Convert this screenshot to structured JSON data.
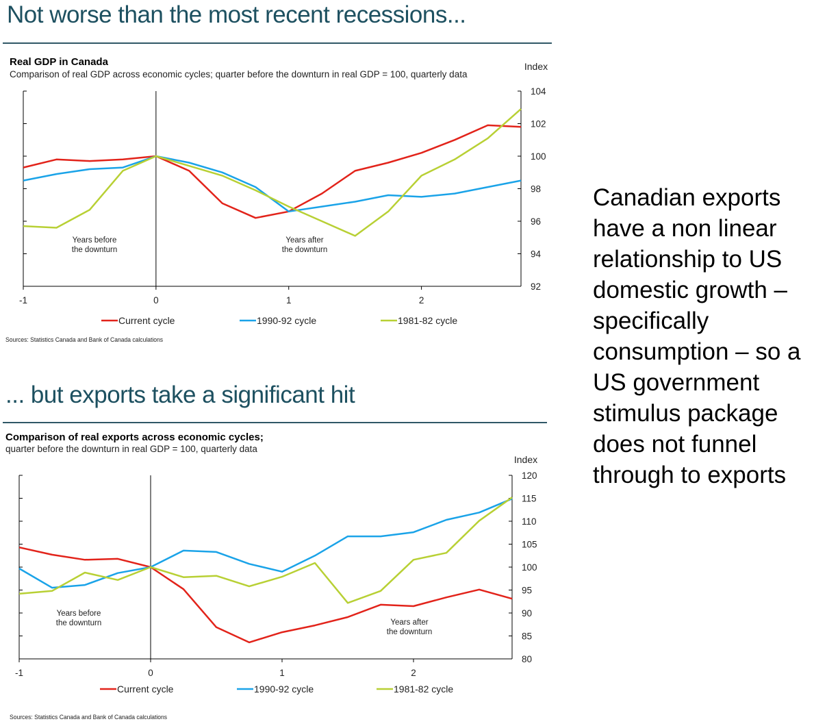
{
  "slide": {
    "headline_top": "Not worse than the most recent recessions...",
    "headline_bottom": "... but exports take a significant hit",
    "side_text": "Canadian exports have a non linear relationship to US domestic growth – specifically consumption – so a US government stimulus package does not funnel through to exports"
  },
  "colors": {
    "headline": "#1d5060",
    "current": "#e2231a",
    "cycle1990": "#1aa3e8",
    "cycle1981": "#b8d034"
  },
  "chart_data": [
    {
      "type": "line",
      "title": "Real GDP in Canada",
      "subtitle": "Comparison of real GDP across economic cycles; quarter before the downturn in real GDP = 100, quarterly data",
      "ylabel": "Index",
      "xlim": [
        -1,
        2.75
      ],
      "ylim": [
        92,
        104
      ],
      "xticks": [
        "-1",
        "0",
        "1",
        "2"
      ],
      "yticks": [
        "92",
        "94",
        "96",
        "98",
        "100",
        "102",
        "104"
      ],
      "annotations": [
        "Years before the downturn",
        "Years after the downturn"
      ],
      "legend": "bottom",
      "sources": "Sources: Statistics Canada and Bank of Canada calculations",
      "x": [
        -1,
        -0.75,
        -0.5,
        -0.25,
        0,
        0.25,
        0.5,
        0.75,
        1,
        1.25,
        1.5,
        1.75,
        2,
        2.25,
        2.5,
        2.75
      ],
      "series": [
        {
          "name": "Current cycle",
          "color": "#e2231a",
          "values": [
            99.3,
            99.8,
            99.7,
            99.8,
            100,
            99.1,
            97.1,
            96.2,
            96.6,
            97.7,
            99.1,
            99.6,
            100.2,
            101.0,
            101.9,
            101.8
          ]
        },
        {
          "name": "1990-92 cycle",
          "color": "#1aa3e8",
          "values": [
            98.5,
            98.9,
            99.2,
            99.3,
            100,
            99.6,
            99.0,
            98.1,
            96.6,
            96.9,
            97.2,
            97.6,
            97.5,
            97.7,
            98.1,
            98.5
          ]
        },
        {
          "name": "1981-82 cycle",
          "color": "#b8d034",
          "values": [
            95.7,
            95.6,
            96.7,
            99.1,
            100,
            99.4,
            98.8,
            97.9,
            96.9,
            96.0,
            95.1,
            96.6,
            98.8,
            99.8,
            101.1,
            102.9
          ]
        }
      ]
    },
    {
      "type": "line",
      "title": "Comparison of real exports across economic cycles;",
      "subtitle": "quarter before the downturn in real GDP = 100, quarterly data",
      "ylabel": "Index",
      "xlim": [
        -1,
        2.75
      ],
      "ylim": [
        80,
        120
      ],
      "xticks": [
        "-1",
        "0",
        "1",
        "2"
      ],
      "yticks": [
        "80",
        "85",
        "90",
        "95",
        "100",
        "105",
        "110",
        "115",
        "120"
      ],
      "annotations": [
        "Years before the downturn",
        "Years after the downturn"
      ],
      "legend": "bottom",
      "sources": "Sources: Statistics Canada and Bank of Canada calculations",
      "x": [
        -1,
        -0.75,
        -0.5,
        -0.25,
        0,
        0.25,
        0.5,
        0.75,
        1,
        1.25,
        1.5,
        1.75,
        2,
        2.25,
        2.5,
        2.75
      ],
      "series": [
        {
          "name": "Current cycle",
          "color": "#e2231a",
          "values": [
            104.3,
            102.7,
            101.6,
            101.8,
            100,
            95.2,
            86.9,
            83.6,
            85.8,
            87.3,
            89.1,
            91.8,
            91.5,
            93.4,
            95.1,
            93.1
          ]
        },
        {
          "name": "1990-92 cycle",
          "color": "#1aa3e8",
          "values": [
            99.7,
            95.5,
            96.1,
            98.7,
            100,
            103.6,
            103.3,
            100.7,
            99.0,
            102.5,
            106.7,
            106.7,
            107.6,
            110.3,
            111.9,
            114.9
          ]
        },
        {
          "name": "1981-82 cycle",
          "color": "#b8d034",
          "values": [
            94.2,
            94.8,
            98.8,
            97.2,
            100,
            97.8,
            98.1,
            95.8,
            97.9,
            100.9,
            92.2,
            94.8,
            101.6,
            103.1,
            110.1,
            115.2
          ]
        }
      ]
    }
  ]
}
